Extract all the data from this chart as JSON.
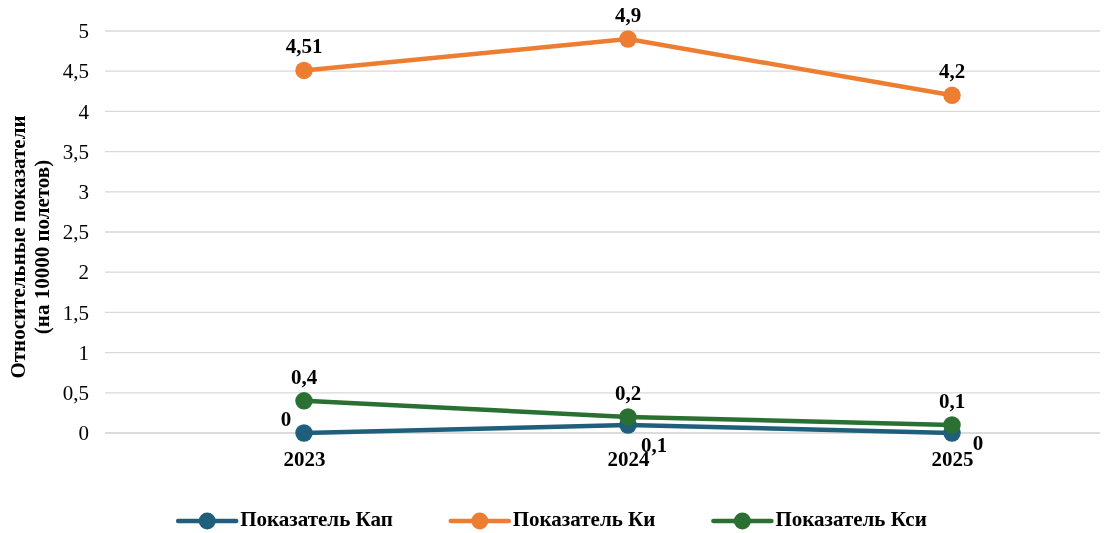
{
  "chart_data": {
    "type": "line",
    "ylabel": "Относительные показатели (на 10000 полетов)",
    "categories": [
      "2023",
      "2024",
      "2025"
    ],
    "series": [
      {
        "name": "Показатель Кап",
        "color": "#1f5f7b",
        "values": [
          0,
          0.1,
          0
        ],
        "value_labels": [
          "0",
          "0,1",
          "0"
        ]
      },
      {
        "name": "Показатель Ки",
        "color": "#ed7d31",
        "values": [
          4.51,
          4.9,
          4.2
        ],
        "value_labels": [
          "4,51",
          "4,9",
          "4,2"
        ]
      },
      {
        "name": "Показатель Кси",
        "color": "#2a7032",
        "values": [
          0.4,
          0.2,
          0.1
        ],
        "value_labels": [
          "0,4",
          "0,2",
          "0,1"
        ]
      }
    ],
    "ylim": [
      0,
      5
    ],
    "yticks": [
      0,
      {
        "value": 0.5,
        "label": "0,5"
      },
      1,
      {
        "value": 1.5,
        "label": "1,5"
      },
      2,
      {
        "value": 2.5,
        "label": "2,5"
      },
      3,
      {
        "value": 3.5,
        "label": "3,5"
      },
      4,
      {
        "value": 4.5,
        "label": "4,5"
      },
      5
    ],
    "grid": "y",
    "legend": "bottom",
    "marker": "circle",
    "line_style": "solid"
  }
}
